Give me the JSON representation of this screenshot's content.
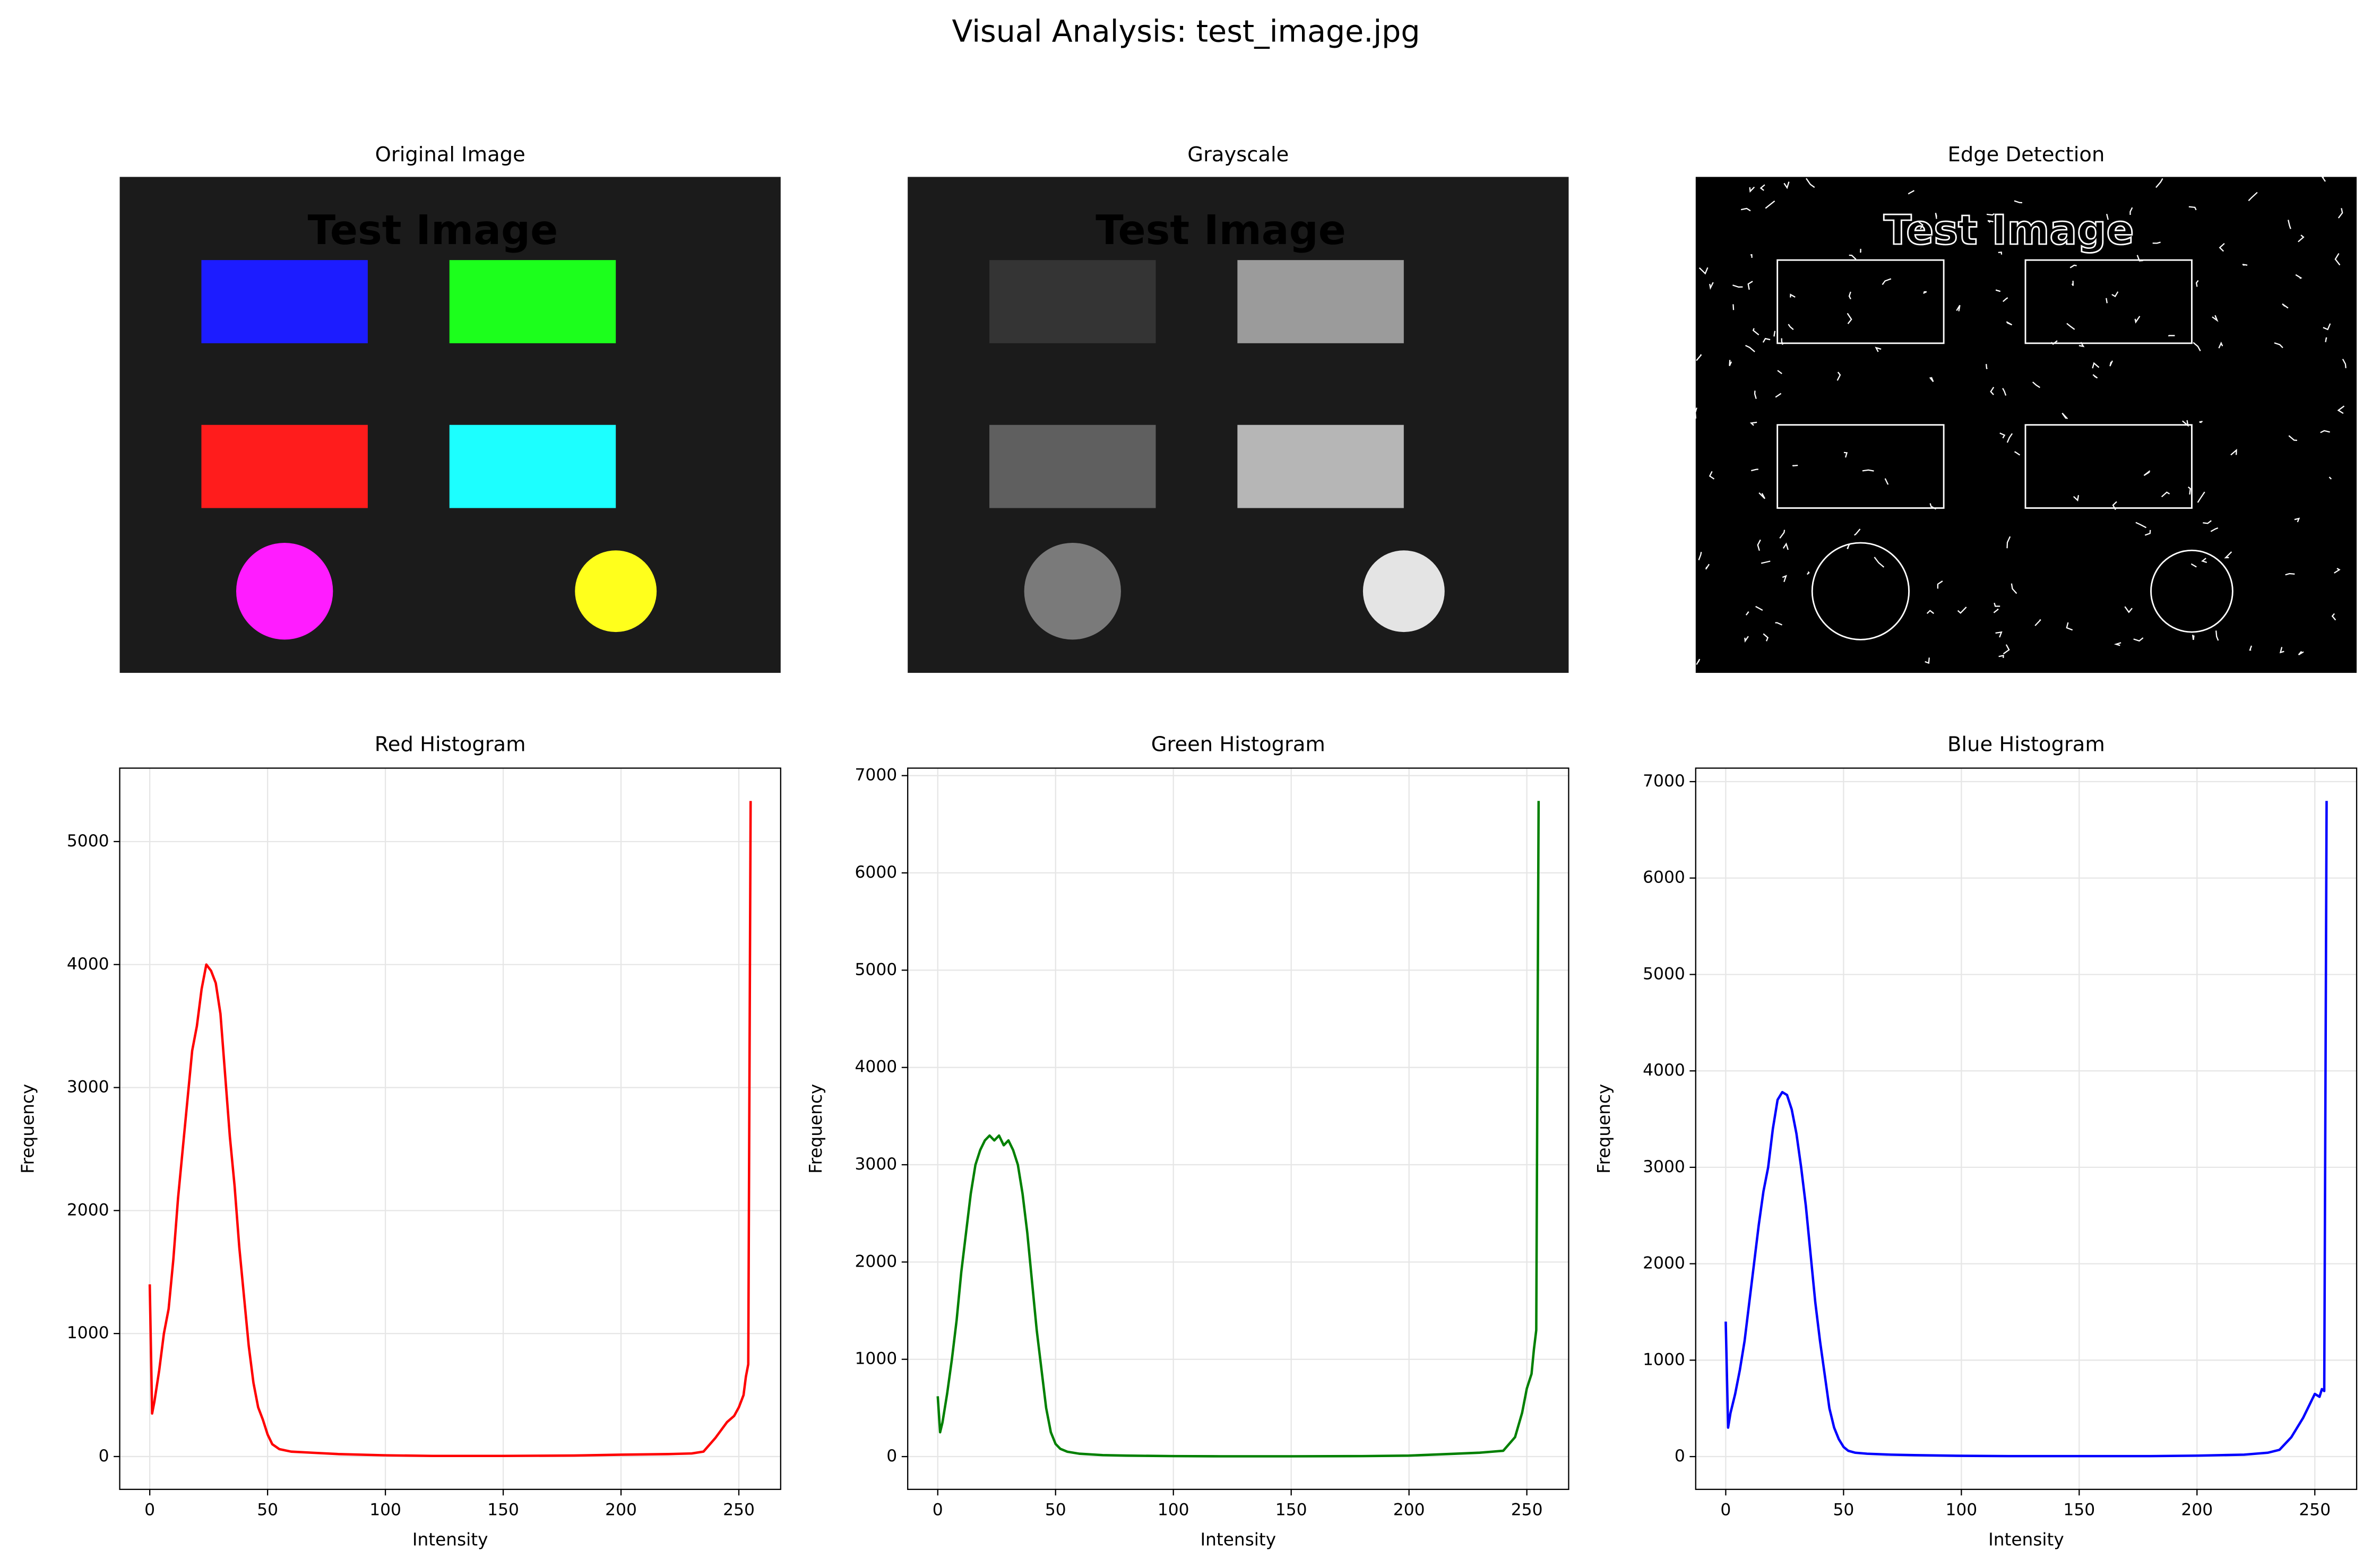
{
  "title": "Visual Analysis: test_image.jpg",
  "chart_data": [
    {
      "type": "image",
      "variant": "original",
      "title": "Original Image",
      "image_text": "Test Image"
    },
    {
      "type": "image",
      "variant": "grayscale",
      "title": "Grayscale",
      "image_text": "Test Image"
    },
    {
      "type": "image",
      "variant": "edges",
      "title": "Edge Detection",
      "image_text": "Test Image"
    },
    {
      "type": "line",
      "title": "Red Histogram",
      "xlabel": "Intensity",
      "ylabel": "Frequency",
      "color": "#ff0000",
      "grid": true,
      "x": [
        0,
        1,
        2,
        4,
        6,
        8,
        10,
        12,
        14,
        16,
        18,
        20,
        22,
        24,
        26,
        28,
        30,
        32,
        34,
        36,
        38,
        40,
        42,
        44,
        46,
        48,
        50,
        52,
        55,
        60,
        70,
        80,
        100,
        120,
        150,
        180,
        200,
        220,
        230,
        235,
        240,
        245,
        248,
        250,
        252,
        253,
        254,
        255
      ],
      "values": [
        1400,
        350,
        450,
        700,
        1000,
        1200,
        1600,
        2100,
        2500,
        2900,
        3300,
        3500,
        3800,
        4000,
        3950,
        3850,
        3600,
        3100,
        2600,
        2200,
        1700,
        1300,
        900,
        600,
        400,
        300,
        180,
        100,
        60,
        40,
        30,
        20,
        10,
        5,
        5,
        8,
        15,
        20,
        25,
        40,
        150,
        280,
        330,
        400,
        500,
        650,
        750,
        5330
      ],
      "xlim": [
        -12.75,
        267.75
      ],
      "xticks": [
        0,
        50,
        100,
        150,
        200,
        250
      ],
      "ylim": [
        -267,
        5597
      ],
      "yticks": [
        0,
        1000,
        2000,
        3000,
        4000,
        5000
      ]
    },
    {
      "type": "line",
      "title": "Green Histogram",
      "xlabel": "Intensity",
      "ylabel": "Frequency",
      "color": "#008000",
      "grid": true,
      "x": [
        0,
        1,
        2,
        4,
        6,
        8,
        10,
        12,
        14,
        16,
        18,
        20,
        22,
        24,
        26,
        28,
        30,
        32,
        34,
        36,
        38,
        40,
        42,
        44,
        46,
        48,
        50,
        52,
        55,
        60,
        70,
        80,
        100,
        120,
        150,
        180,
        200,
        220,
        230,
        235,
        240,
        245,
        248,
        250,
        252,
        253,
        254,
        255
      ],
      "values": [
        620,
        250,
        350,
        650,
        1000,
        1400,
        1900,
        2300,
        2700,
        3000,
        3150,
        3250,
        3300,
        3250,
        3300,
        3200,
        3250,
        3150,
        3000,
        2700,
        2300,
        1800,
        1300,
        900,
        500,
        250,
        130,
        80,
        50,
        30,
        15,
        10,
        5,
        3,
        3,
        5,
        10,
        30,
        40,
        50,
        60,
        200,
        450,
        700,
        850,
        1100,
        1300,
        6740
      ],
      "xlim": [
        -12.75,
        267.75
      ],
      "xticks": [
        0,
        50,
        100,
        150,
        200,
        250
      ],
      "ylim": [
        -337,
        7077
      ],
      "yticks": [
        0,
        1000,
        2000,
        3000,
        4000,
        5000,
        6000,
        7000
      ]
    },
    {
      "type": "line",
      "title": "Blue Histogram",
      "xlabel": "Intensity",
      "ylabel": "Frequency",
      "color": "#0000ff",
      "grid": true,
      "x": [
        0,
        1,
        2,
        4,
        6,
        8,
        10,
        12,
        14,
        16,
        18,
        20,
        22,
        24,
        26,
        28,
        30,
        32,
        34,
        36,
        38,
        40,
        42,
        44,
        46,
        48,
        50,
        52,
        55,
        60,
        70,
        80,
        100,
        120,
        150,
        180,
        200,
        220,
        230,
        235,
        240,
        245,
        248,
        250,
        252,
        253,
        254,
        255
      ],
      "values": [
        1400,
        300,
        450,
        650,
        900,
        1200,
        1600,
        2000,
        2400,
        2750,
        3000,
        3400,
        3700,
        3780,
        3750,
        3600,
        3350,
        3000,
        2600,
        2100,
        1600,
        1200,
        850,
        500,
        300,
        180,
        100,
        60,
        40,
        30,
        20,
        15,
        8,
        5,
        5,
        5,
        10,
        20,
        40,
        70,
        200,
        400,
        550,
        650,
        620,
        700,
        680,
        6800
      ],
      "xlim": [
        -12.75,
        267.75
      ],
      "xticks": [
        0,
        50,
        100,
        150,
        200,
        250
      ],
      "ylim": [
        -340,
        7140
      ],
      "yticks": [
        0,
        1000,
        2000,
        3000,
        4000,
        5000,
        6000,
        7000
      ]
    }
  ]
}
